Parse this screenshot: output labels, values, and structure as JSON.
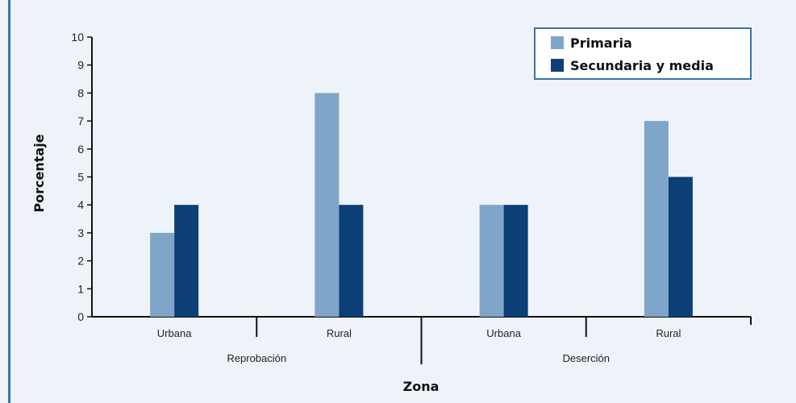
{
  "chart_data": {
    "type": "bar",
    "title": "",
    "xlabel": "Zona",
    "ylabel": "Porcentaje",
    "ylim": [
      0,
      10
    ],
    "yticks": [
      0,
      1,
      2,
      3,
      4,
      5,
      6,
      7,
      8,
      9,
      10
    ],
    "groups": [
      "Reprobación",
      "Deserción"
    ],
    "categories": [
      "Urbana",
      "Rural",
      "Urbana",
      "Rural"
    ],
    "series": [
      {
        "name": "Primaria",
        "color": "#7fa5c8",
        "values": [
          3,
          8,
          4,
          7
        ]
      },
      {
        "name": "Secundaria y media",
        "color": "#0b3f75",
        "values": [
          4,
          4,
          4,
          5
        ]
      }
    ],
    "grid": false,
    "legend_position": "top-right"
  }
}
